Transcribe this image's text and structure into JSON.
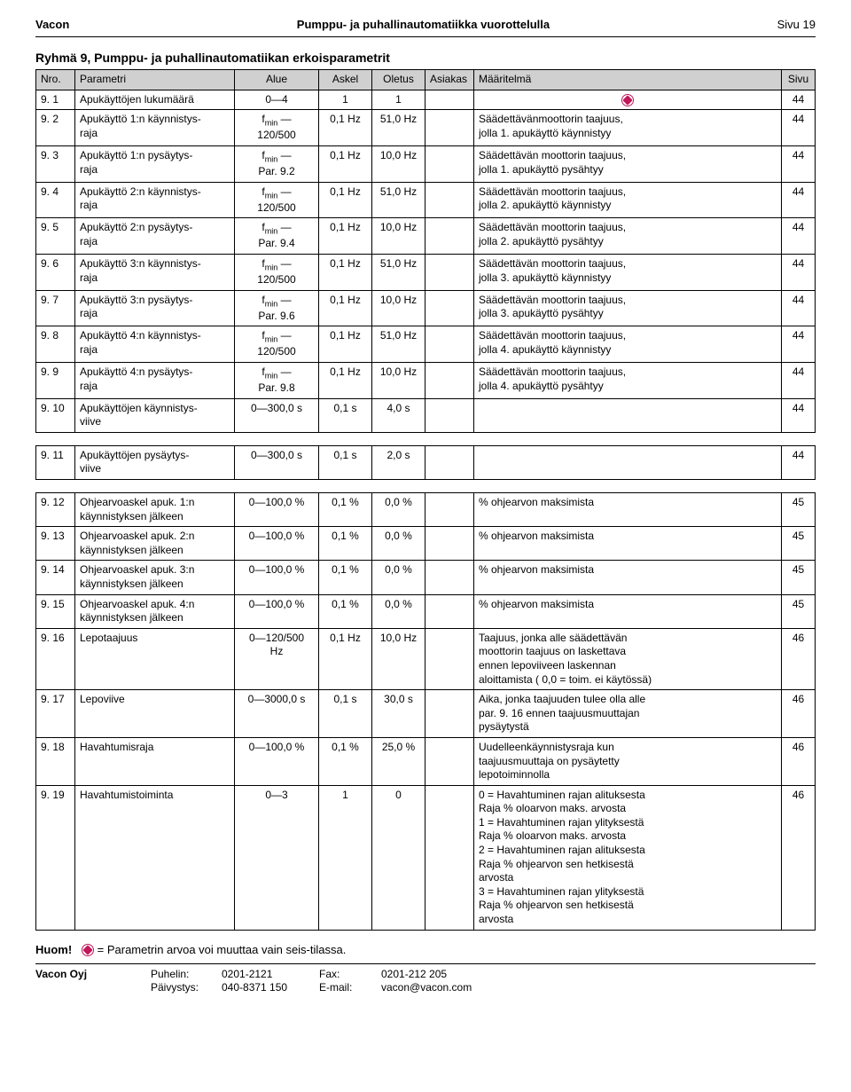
{
  "header": {
    "left": "Vacon",
    "center": "Pumppu- ja puhallinautomatiikka vuorottelulla",
    "right": "Sivu 19"
  },
  "section_title": "Ryhmä 9, Pumppu- ja puhallinautomatiikan erkoisparametrit",
  "columns": [
    "Nro.",
    "Parametri",
    "Alue",
    "Askel",
    "Oletus",
    "Asiakas",
    "Määritelmä",
    "Sivu"
  ],
  "group1": [
    {
      "nro": "9. 1",
      "param": "Apukäyttöjen lukumäärä",
      "alue": "0—4",
      "askel": "1",
      "oletus": "1",
      "icon": true,
      "sivu": "44",
      "maar": ""
    },
    {
      "nro": "9. 2",
      "param": "Apukäyttö 1:n käynnistys-\nraja",
      "alue": "f<sub>min</sub> —\n120/500",
      "askel": "0,1 Hz",
      "oletus": "51,0 Hz",
      "maar": "Säädettävänmoottorin taajuus,\njolla 1. apukäyttö käynnistyy",
      "sivu": "44"
    },
    {
      "nro": "9. 3",
      "param": "Apukäyttö 1:n pysäytys-\nraja",
      "alue": "f<sub>min</sub> —\nPar. 9.2",
      "askel": "0,1 Hz",
      "oletus": "10,0 Hz",
      "maar": "Säädettävän moottorin taajuus,\njolla 1. apukäyttö pysähtyy",
      "sivu": "44"
    },
    {
      "nro": "9. 4",
      "param": "Apukäyttö 2:n käynnistys-\nraja",
      "alue": "f<sub>min</sub> —\n120/500",
      "askel": "0,1 Hz",
      "oletus": "51,0 Hz",
      "maar": "Säädettävän moottorin taajuus,\njolla 2. apukäyttö käynnistyy",
      "sivu": "44"
    },
    {
      "nro": "9. 5",
      "param": "Apukäyttö 2:n pysäytys-\nraja",
      "alue": "f<sub>min</sub> —\nPar. 9.4",
      "askel": "0,1 Hz",
      "oletus": "10,0 Hz",
      "maar": "Säädettävän moottorin taajuus,\njolla 2. apukäyttö pysähtyy",
      "sivu": "44"
    },
    {
      "nro": "9. 6",
      "param": "Apukäyttö 3:n käynnistys-\nraja",
      "alue": "f<sub>min</sub> —\n120/500",
      "askel": "0,1 Hz",
      "oletus": "51,0 Hz",
      "maar": "Säädettävän moottorin taajuus,\njolla 3. apukäyttö käynnistyy",
      "sivu": "44"
    },
    {
      "nro": "9. 7",
      "param": "Apukäyttö 3:n pysäytys-\nraja",
      "alue": "f<sub>min</sub> —\nPar. 9.6",
      "askel": "0,1 Hz",
      "oletus": "10,0 Hz",
      "maar": "Säädettävän moottorin taajuus,\njolla 3. apukäyttö pysähtyy",
      "sivu": "44"
    },
    {
      "nro": "9. 8",
      "param": "Apukäyttö 4:n käynnistys-\nraja",
      "alue": "f<sub>min</sub> —\n120/500",
      "askel": "0,1 Hz",
      "oletus": "51,0 Hz",
      "maar": "Säädettävän moottorin taajuus,\njolla 4. apukäyttö käynnistyy",
      "sivu": "44"
    },
    {
      "nro": "9. 9",
      "param": "Apukäyttö 4:n pysäytys-\nraja",
      "alue": "f<sub>min</sub> —\nPar. 9.8",
      "askel": "0,1 Hz",
      "oletus": "10,0 Hz",
      "maar": "Säädettävän moottorin taajuus,\njolla 4. apukäyttö pysähtyy",
      "sivu": "44"
    },
    {
      "nro": "9. 10",
      "param": "Apukäyttöjen käynnistys-\nviive",
      "alue": "0—300,0 s",
      "askel": "0,1 s",
      "oletus": "4,0 s",
      "maar": "",
      "sivu": "44"
    }
  ],
  "group2": [
    {
      "nro": "9. 11",
      "param": "Apukäyttöjen pysäytys-\nviive",
      "alue": "0—300,0 s",
      "askel": "0,1 s",
      "oletus": "2,0 s",
      "maar": "",
      "sivu": "44"
    }
  ],
  "group3": [
    {
      "nro": "9. 12",
      "param": "Ohjearvoaskel apuk. 1:n\nkäynnistyksen jälkeen",
      "alue": "0—100,0 %",
      "askel": "0,1 %",
      "oletus": "0,0 %",
      "maar": "% ohjearvon maksimista",
      "sivu": "45"
    },
    {
      "nro": "9. 13",
      "param": "Ohjearvoaskel apuk. 2:n\nkäynnistyksen jälkeen",
      "alue": "0—100,0 %",
      "askel": "0,1 %",
      "oletus": "0,0 %",
      "maar": "% ohjearvon maksimista",
      "sivu": "45"
    },
    {
      "nro": "9. 14",
      "param": "Ohjearvoaskel apuk. 3:n\nkäynnistyksen jälkeen",
      "alue": "0—100,0 %",
      "askel": "0,1 %",
      "oletus": "0,0 %",
      "maar": "% ohjearvon maksimista",
      "sivu": "45"
    },
    {
      "nro": "9. 15",
      "param": "Ohjearvoaskel apuk. 4:n\nkäynnistyksen jälkeen",
      "alue": "0—100,0 %",
      "askel": "0,1 %",
      "oletus": "0,0 %",
      "maar": "% ohjearvon maksimista",
      "sivu": "45"
    },
    {
      "nro": "9. 16",
      "param": "Lepotaajuus",
      "alue": "0—120/500\nHz",
      "askel": "0,1 Hz",
      "oletus": "10,0 Hz",
      "maar": "Taajuus, jonka alle säädettävän\nmoottorin taajuus on laskettava\nennen lepoviiveen laskennan\naloittamista ( 0,0 = toim. ei käytössä)",
      "sivu": "46"
    },
    {
      "nro": "9. 17",
      "param": "Lepoviive",
      "alue": "0—3000,0 s",
      "askel": "0,1 s",
      "oletus": "30,0 s",
      "maar": "Aika, jonka taajuuden tulee olla alle\npar. 9. 16 ennen taajuusmuuttajan\npysäytystä",
      "sivu": "46"
    },
    {
      "nro": "9. 18",
      "param": "Havahtumisraja",
      "alue": "0—100,0 %",
      "askel": "0,1 %",
      "oletus": "25,0 %",
      "maar": "Uudelleenkäynnistysraja kun\ntaajuusmuuttaja on pysäytetty\nlepotoiminnolla",
      "sivu": "46"
    },
    {
      "nro": "9. 19",
      "param": "Havahtumistoiminta",
      "alue": "0—3",
      "askel": "1",
      "oletus": "0",
      "maar": "0 = Havahtuminen rajan alituksesta\n      Raja % oloarvon maks. arvosta\n1 = Havahtuminen rajan ylityksestä\n      Raja % oloarvon maks. arvosta\n2 = Havahtuminen rajan alituksesta\n      Raja % ohjearvon sen hetkisestä\n      arvosta\n3 = Havahtuminen rajan ylityksestä\n      Raja % ohjearvon sen hetkisestä\n      arvosta",
      "sivu": "46"
    }
  ],
  "huom": {
    "label": "Huom!",
    "text": " = Parametrin arvoa voi muuttaa vain seis-tilassa."
  },
  "footer": {
    "company": "Vacon Oyj",
    "phone_label": "Puhelin:",
    "phone_val": "0201-2121",
    "dayduty_label": "Päivystys:",
    "dayduty_val": "040-8371 150",
    "fax_label": "Fax:",
    "fax_val": "0201-212 205",
    "email_label": "E-mail:",
    "email_val": "vacon@vacon.com"
  }
}
